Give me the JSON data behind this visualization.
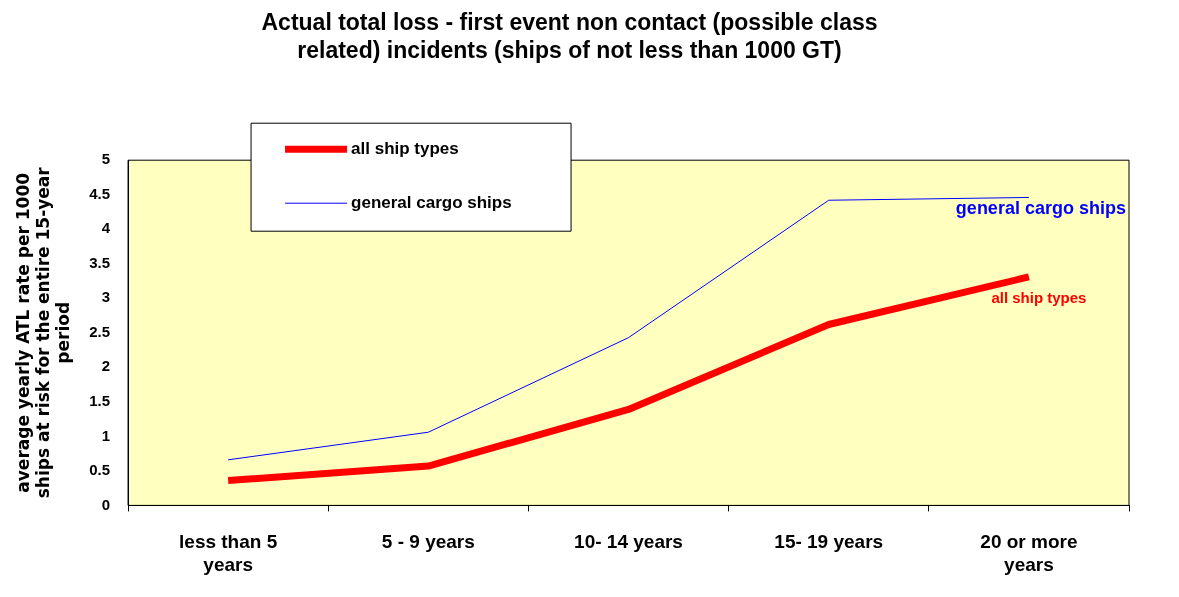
{
  "chart_data": {
    "type": "line",
    "title": "Actual total loss - first event non contact (possible class related) incidents (ships of not less than 1000 GT)",
    "ylabel": "average yearly ATL rate per 1000 ships at risk for the entire 15-year period",
    "categories": [
      "less than 5 years",
      "5 - 9 years",
      "10- 14 years",
      "15- 19 years",
      "20 or more years"
    ],
    "series": [
      {
        "name": "all ship types",
        "color": "#ff0000",
        "values": [
          0.36,
          0.57,
          1.39,
          2.62,
          3.31
        ]
      },
      {
        "name": "general cargo ships",
        "color": "#0000ff",
        "values": [
          0.66,
          1.06,
          2.43,
          4.42,
          4.46
        ]
      }
    ],
    "ylim": [
      0,
      5
    ],
    "yticks": [
      0,
      0.5,
      1,
      1.5,
      2,
      2.5,
      3,
      3.5,
      4,
      4.5,
      5
    ],
    "grid": false,
    "legend": "top left",
    "marker": "none",
    "annotations": [
      {
        "text": "all ship types",
        "x": "20 or more years",
        "y": 3.31
      },
      {
        "text": "general cargo ships",
        "x": "20 or more years",
        "y": 4.46
      }
    ]
  }
}
